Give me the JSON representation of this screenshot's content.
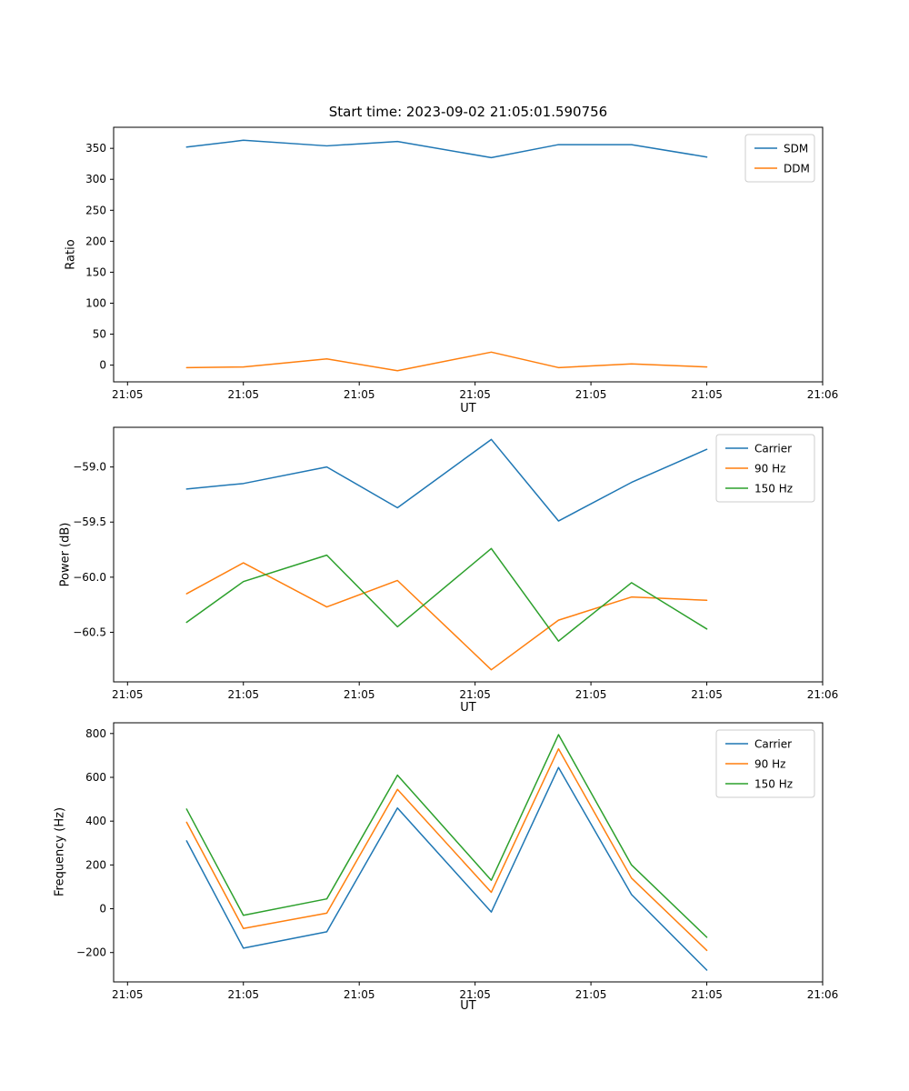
{
  "figure": {
    "title": "Start time: 2023-09-02 21:05:01.590756",
    "background": "#ffffff"
  },
  "colors": {
    "blue": "#1f77b4",
    "orange": "#ff7f0e",
    "green": "#2ca02c",
    "legend_border": "#cccccc",
    "axes": "#000000"
  },
  "chart_data": [
    {
      "type": "line",
      "title": "Start time: 2023-09-02 21:05:01.590756",
      "xlabel": "UT",
      "ylabel": "Ratio",
      "legend_position": "upper right",
      "grid": false,
      "x": [
        5.1,
        10.0,
        17.2,
        23.3,
        31.4,
        37.2,
        43.5,
        50.0
      ],
      "xlim": [
        -1.2,
        60
      ],
      "ylim": [
        -27,
        384
      ],
      "xtick_values": [
        0,
        10,
        20,
        30,
        40,
        50,
        60
      ],
      "xtick_labels": [
        "21:05",
        "21:05",
        "21:05",
        "21:05",
        "21:05",
        "21:05",
        "21:06"
      ],
      "ytick_values": [
        0,
        50,
        100,
        150,
        200,
        250,
        300,
        350
      ],
      "ytick_labels": [
        "0",
        "50",
        "100",
        "150",
        "200",
        "250",
        "300",
        "350"
      ],
      "series": [
        {
          "name": "SDM",
          "color": "#1f77b4",
          "values": [
            352,
            363,
            354,
            361,
            335,
            356,
            356,
            336
          ]
        },
        {
          "name": "DDM",
          "color": "#ff7f0e",
          "values": [
            -4,
            -3,
            10,
            -9,
            21,
            -4,
            2,
            -3
          ]
        }
      ]
    },
    {
      "type": "line",
      "title": "",
      "xlabel": "UT",
      "ylabel": "Power (dB)",
      "legend_position": "upper right",
      "grid": false,
      "x": [
        5.1,
        10.0,
        17.2,
        23.3,
        31.4,
        37.2,
        43.5,
        50.0
      ],
      "xlim": [
        -1.2,
        60
      ],
      "ylim": [
        -60.95,
        -58.64
      ],
      "xtick_values": [
        0,
        10,
        20,
        30,
        40,
        50,
        60
      ],
      "xtick_labels": [
        "21:05",
        "21:05",
        "21:05",
        "21:05",
        "21:05",
        "21:05",
        "21:06"
      ],
      "ytick_values": [
        -59.0,
        -59.5,
        -60.0,
        -60.5
      ],
      "ytick_labels": [
        "−59.0",
        "−59.5",
        "−60.0",
        "−60.5"
      ],
      "series": [
        {
          "name": "Carrier",
          "color": "#1f77b4",
          "values": [
            -59.2,
            -59.15,
            -59.0,
            -59.37,
            -58.75,
            -59.49,
            -59.14,
            -58.84
          ]
        },
        {
          "name": "90 Hz",
          "color": "#ff7f0e",
          "values": [
            -60.15,
            -59.87,
            -60.27,
            -60.03,
            -60.84,
            -60.39,
            -60.18,
            -60.21
          ]
        },
        {
          "name": "150 Hz",
          "color": "#2ca02c",
          "values": [
            -60.41,
            -60.04,
            -59.8,
            -60.45,
            -59.74,
            -60.58,
            -60.05,
            -60.47
          ]
        }
      ]
    },
    {
      "type": "line",
      "title": "",
      "xlabel": "UT",
      "ylabel": "Frequency (Hz)",
      "legend_position": "upper right",
      "grid": false,
      "x": [
        5.1,
        10.0,
        17.2,
        23.3,
        31.4,
        37.2,
        43.5,
        50.0
      ],
      "xlim": [
        -1.2,
        60
      ],
      "ylim": [
        -334,
        849
      ],
      "xtick_values": [
        0,
        10,
        20,
        30,
        40,
        50,
        60
      ],
      "xtick_labels": [
        "21:05",
        "21:05",
        "21:05",
        "21:05",
        "21:05",
        "21:05",
        "21:06"
      ],
      "ytick_values": [
        -200,
        0,
        200,
        400,
        600,
        800
      ],
      "ytick_labels": [
        "−200",
        "0",
        "200",
        "400",
        "600",
        "800"
      ],
      "series": [
        {
          "name": "Carrier",
          "color": "#1f77b4",
          "values": [
            310,
            -180,
            -105,
            460,
            -15,
            645,
            65,
            -280
          ]
        },
        {
          "name": "90 Hz",
          "color": "#ff7f0e",
          "values": [
            395,
            -90,
            -20,
            545,
            75,
            730,
            140,
            -190
          ]
        },
        {
          "name": "150 Hz",
          "color": "#2ca02c",
          "values": [
            455,
            -30,
            45,
            610,
            130,
            795,
            200,
            -130
          ]
        }
      ]
    }
  ]
}
